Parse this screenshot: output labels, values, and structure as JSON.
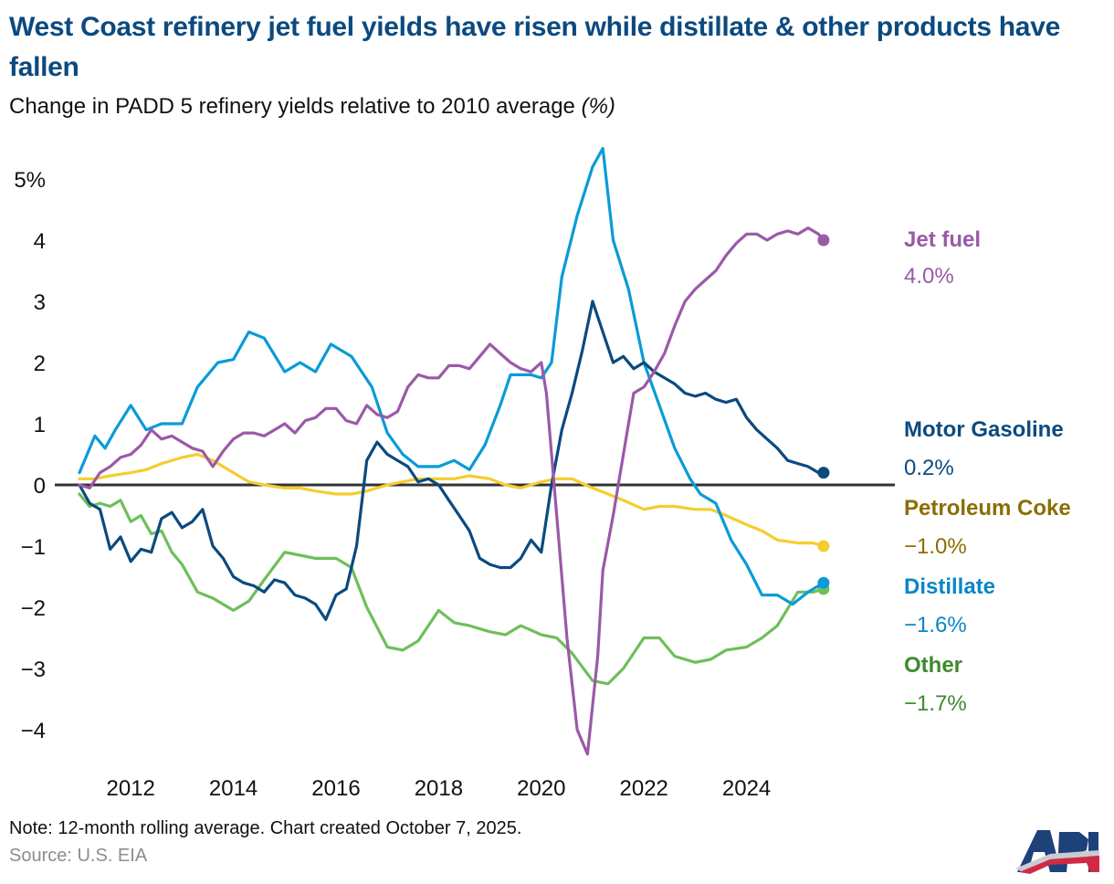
{
  "header": {
    "title": "West Coast refinery jet fuel yields have risen while distillate & other products have fallen",
    "subtitle": "Change in PADD 5 refinery yields relative to 2010 average",
    "subtitle_unit": "(%)"
  },
  "footer": {
    "note": "Note: 12-month rolling average. Chart created October 7, 2025.",
    "source": "Source: U.S. EIA",
    "logo_text": "API"
  },
  "chart_data": {
    "type": "line",
    "title": "West Coast refinery jet fuel yields have risen while distillate & other products have fallen",
    "subtitle": "Change in PADD 5 refinery yields relative to 2010 average (%)",
    "xlabel": "",
    "ylabel": "",
    "xlim": [
      2011.0,
      2025.6
    ],
    "ylim": [
      -4.6,
      5.5
    ],
    "x_ticks": [
      2012,
      2014,
      2016,
      2018,
      2020,
      2022,
      2024
    ],
    "x_tick_labels": [
      "2012",
      "2014",
      "2016",
      "2018",
      "2020",
      "2022",
      "2024"
    ],
    "y_ticks": [
      5,
      4,
      3,
      2,
      1,
      0,
      -1,
      -2,
      -3,
      -4
    ],
    "y_tick_labels": [
      "5%",
      "4",
      "3",
      "2",
      "1",
      "0",
      "−1",
      "−2",
      "−3",
      "−4"
    ],
    "grid": false,
    "zero_line": true,
    "legend": "direct-labels-right",
    "series": [
      {
        "name": "Jet fuel",
        "end_label": "4.0%",
        "color": "#9b59a8",
        "label_color": "#9b59a8",
        "x": [
          2011.0,
          2011.2,
          2011.4,
          2011.6,
          2011.8,
          2012.0,
          2012.2,
          2012.4,
          2012.6,
          2012.8,
          2013.0,
          2013.2,
          2013.4,
          2013.6,
          2013.8,
          2014.0,
          2014.2,
          2014.4,
          2014.6,
          2014.8,
          2015.0,
          2015.2,
          2015.4,
          2015.6,
          2015.8,
          2016.0,
          2016.2,
          2016.4,
          2016.6,
          2016.8,
          2017.0,
          2017.2,
          2017.4,
          2017.6,
          2017.8,
          2018.0,
          2018.2,
          2018.4,
          2018.6,
          2018.8,
          2019.0,
          2019.2,
          2019.4,
          2019.6,
          2019.8,
          2020.0,
          2020.1,
          2020.3,
          2020.5,
          2020.7,
          2020.9,
          2021.1,
          2021.2,
          2021.4,
          2021.6,
          2021.8,
          2022.0,
          2022.2,
          2022.4,
          2022.6,
          2022.8,
          2023.0,
          2023.2,
          2023.4,
          2023.6,
          2023.8,
          2024.0,
          2024.2,
          2024.4,
          2024.6,
          2024.8,
          2025.0,
          2025.2,
          2025.4,
          2025.5
        ],
        "values": [
          0.0,
          -0.05,
          0.2,
          0.3,
          0.45,
          0.5,
          0.65,
          0.9,
          0.75,
          0.8,
          0.7,
          0.6,
          0.55,
          0.3,
          0.55,
          0.75,
          0.85,
          0.85,
          0.8,
          0.9,
          1.0,
          0.85,
          1.05,
          1.1,
          1.25,
          1.25,
          1.05,
          1.0,
          1.3,
          1.15,
          1.1,
          1.2,
          1.6,
          1.8,
          1.75,
          1.75,
          1.95,
          1.95,
          1.9,
          2.1,
          2.3,
          2.15,
          2.0,
          1.9,
          1.85,
          2.0,
          1.5,
          -0.5,
          -2.5,
          -4.0,
          -4.4,
          -2.8,
          -1.4,
          -0.5,
          0.5,
          1.5,
          1.6,
          1.85,
          2.15,
          2.6,
          3.0,
          3.2,
          3.35,
          3.5,
          3.75,
          3.95,
          4.1,
          4.1,
          4.0,
          4.1,
          4.15,
          4.1,
          4.2,
          4.1,
          4.0
        ]
      },
      {
        "name": "Motor Gasoline",
        "end_label": "0.2%",
        "color": "#0b4a7f",
        "label_color": "#0b4a7f",
        "x": [
          2011.0,
          2011.2,
          2011.4,
          2011.6,
          2011.8,
          2012.0,
          2012.2,
          2012.4,
          2012.6,
          2012.8,
          2013.0,
          2013.2,
          2013.4,
          2013.6,
          2013.8,
          2014.0,
          2014.2,
          2014.4,
          2014.6,
          2014.8,
          2015.0,
          2015.2,
          2015.4,
          2015.6,
          2015.8,
          2016.0,
          2016.2,
          2016.4,
          2016.6,
          2016.8,
          2017.0,
          2017.2,
          2017.4,
          2017.6,
          2017.8,
          2018.0,
          2018.2,
          2018.4,
          2018.6,
          2018.8,
          2019.0,
          2019.2,
          2019.4,
          2019.6,
          2019.8,
          2020.0,
          2020.2,
          2020.4,
          2020.6,
          2020.8,
          2021.0,
          2021.2,
          2021.4,
          2021.6,
          2021.8,
          2022.0,
          2022.2,
          2022.4,
          2022.6,
          2022.8,
          2023.0,
          2023.2,
          2023.4,
          2023.6,
          2023.8,
          2024.0,
          2024.2,
          2024.4,
          2024.6,
          2024.8,
          2025.0,
          2025.2,
          2025.4,
          2025.5
        ],
        "values": [
          0.0,
          -0.3,
          -0.4,
          -1.05,
          -0.85,
          -1.25,
          -1.05,
          -1.1,
          -0.55,
          -0.45,
          -0.7,
          -0.6,
          -0.4,
          -1.0,
          -1.2,
          -1.5,
          -1.6,
          -1.65,
          -1.75,
          -1.55,
          -1.6,
          -1.8,
          -1.85,
          -1.95,
          -2.2,
          -1.8,
          -1.7,
          -1.0,
          0.4,
          0.7,
          0.5,
          0.4,
          0.3,
          0.05,
          0.1,
          0.0,
          -0.25,
          -0.5,
          -0.75,
          -1.2,
          -1.3,
          -1.35,
          -1.35,
          -1.2,
          -0.9,
          -1.1,
          0.0,
          0.9,
          1.5,
          2.2,
          3.0,
          2.5,
          2.0,
          2.1,
          1.9,
          2.0,
          1.85,
          1.75,
          1.65,
          1.5,
          1.45,
          1.5,
          1.4,
          1.35,
          1.4,
          1.1,
          0.9,
          0.75,
          0.6,
          0.4,
          0.35,
          0.3,
          0.2,
          0.2
        ]
      },
      {
        "name": "Petroleum Coke",
        "end_label": "−1.0%",
        "color": "#f5cd2f",
        "label_color": "#8b6e00",
        "x": [
          2011.0,
          2011.3,
          2011.6,
          2012.0,
          2012.3,
          2012.6,
          2013.0,
          2013.3,
          2013.6,
          2014.0,
          2014.3,
          2014.6,
          2015.0,
          2015.3,
          2015.6,
          2016.0,
          2016.3,
          2016.6,
          2017.0,
          2017.3,
          2017.6,
          2018.0,
          2018.3,
          2018.6,
          2019.0,
          2019.3,
          2019.6,
          2020.0,
          2020.3,
          2020.6,
          2021.0,
          2021.3,
          2021.6,
          2022.0,
          2022.3,
          2022.6,
          2023.0,
          2023.3,
          2023.6,
          2024.0,
          2024.3,
          2024.6,
          2025.0,
          2025.3,
          2025.5
        ],
        "values": [
          0.1,
          0.1,
          0.15,
          0.2,
          0.25,
          0.35,
          0.45,
          0.5,
          0.4,
          0.2,
          0.05,
          0.0,
          -0.05,
          -0.05,
          -0.1,
          -0.15,
          -0.15,
          -0.1,
          0.0,
          0.05,
          0.1,
          0.1,
          0.1,
          0.15,
          0.1,
          0.0,
          -0.05,
          0.05,
          0.1,
          0.1,
          -0.05,
          -0.15,
          -0.25,
          -0.4,
          -0.35,
          -0.35,
          -0.4,
          -0.4,
          -0.5,
          -0.65,
          -0.75,
          -0.9,
          -0.95,
          -0.95,
          -1.0
        ]
      },
      {
        "name": "Distillate",
        "end_label": "−1.6%",
        "color": "#0a9bd8",
        "label_color": "#0a86c8",
        "x": [
          2011.0,
          2011.3,
          2011.5,
          2011.7,
          2012.0,
          2012.3,
          2012.6,
          2013.0,
          2013.3,
          2013.7,
          2014.0,
          2014.3,
          2014.6,
          2015.0,
          2015.3,
          2015.6,
          2015.9,
          2016.3,
          2016.7,
          2017.0,
          2017.3,
          2017.6,
          2018.0,
          2018.3,
          2018.6,
          2018.9,
          2019.2,
          2019.4,
          2019.8,
          2020.0,
          2020.2,
          2020.4,
          2020.7,
          2021.0,
          2021.2,
          2021.4,
          2021.7,
          2022.0,
          2022.3,
          2022.6,
          2022.9,
          2023.1,
          2023.4,
          2023.7,
          2024.0,
          2024.3,
          2024.6,
          2024.9,
          2025.2,
          2025.5
        ],
        "values": [
          0.2,
          0.8,
          0.6,
          0.9,
          1.3,
          0.9,
          1.0,
          1.0,
          1.6,
          2.0,
          2.05,
          2.5,
          2.4,
          1.85,
          2.0,
          1.85,
          2.3,
          2.1,
          1.6,
          0.85,
          0.5,
          0.3,
          0.3,
          0.4,
          0.25,
          0.65,
          1.3,
          1.8,
          1.8,
          1.75,
          2.0,
          3.4,
          4.4,
          5.2,
          5.5,
          4.0,
          3.2,
          2.0,
          1.3,
          0.6,
          0.1,
          -0.15,
          -0.3,
          -0.9,
          -1.3,
          -1.8,
          -1.8,
          -1.95,
          -1.75,
          -1.6
        ]
      },
      {
        "name": "Other",
        "end_label": "−1.7%",
        "color": "#6dbf5b",
        "label_color": "#3e8a2f",
        "x": [
          2011.0,
          2011.2,
          2011.4,
          2011.6,
          2011.8,
          2012.0,
          2012.2,
          2012.4,
          2012.6,
          2012.8,
          2013.0,
          2013.3,
          2013.6,
          2014.0,
          2014.3,
          2014.6,
          2015.0,
          2015.3,
          2015.6,
          2016.0,
          2016.3,
          2016.6,
          2017.0,
          2017.3,
          2017.6,
          2018.0,
          2018.3,
          2018.6,
          2019.0,
          2019.3,
          2019.6,
          2020.0,
          2020.3,
          2020.6,
          2021.0,
          2021.3,
          2021.6,
          2022.0,
          2022.3,
          2022.6,
          2023.0,
          2023.3,
          2023.6,
          2024.0,
          2024.3,
          2024.6,
          2025.0,
          2025.3,
          2025.5
        ],
        "values": [
          -0.15,
          -0.35,
          -0.3,
          -0.35,
          -0.25,
          -0.6,
          -0.5,
          -0.8,
          -0.75,
          -1.1,
          -1.3,
          -1.75,
          -1.85,
          -2.05,
          -1.9,
          -1.55,
          -1.1,
          -1.15,
          -1.2,
          -1.2,
          -1.35,
          -2.0,
          -2.65,
          -2.7,
          -2.55,
          -2.05,
          -2.25,
          -2.3,
          -2.4,
          -2.45,
          -2.3,
          -2.45,
          -2.5,
          -2.75,
          -3.2,
          -3.25,
          -3.0,
          -2.5,
          -2.5,
          -2.8,
          -2.9,
          -2.85,
          -2.7,
          -2.65,
          -2.5,
          -2.3,
          -1.75,
          -1.75,
          -1.7
        ]
      }
    ]
  }
}
